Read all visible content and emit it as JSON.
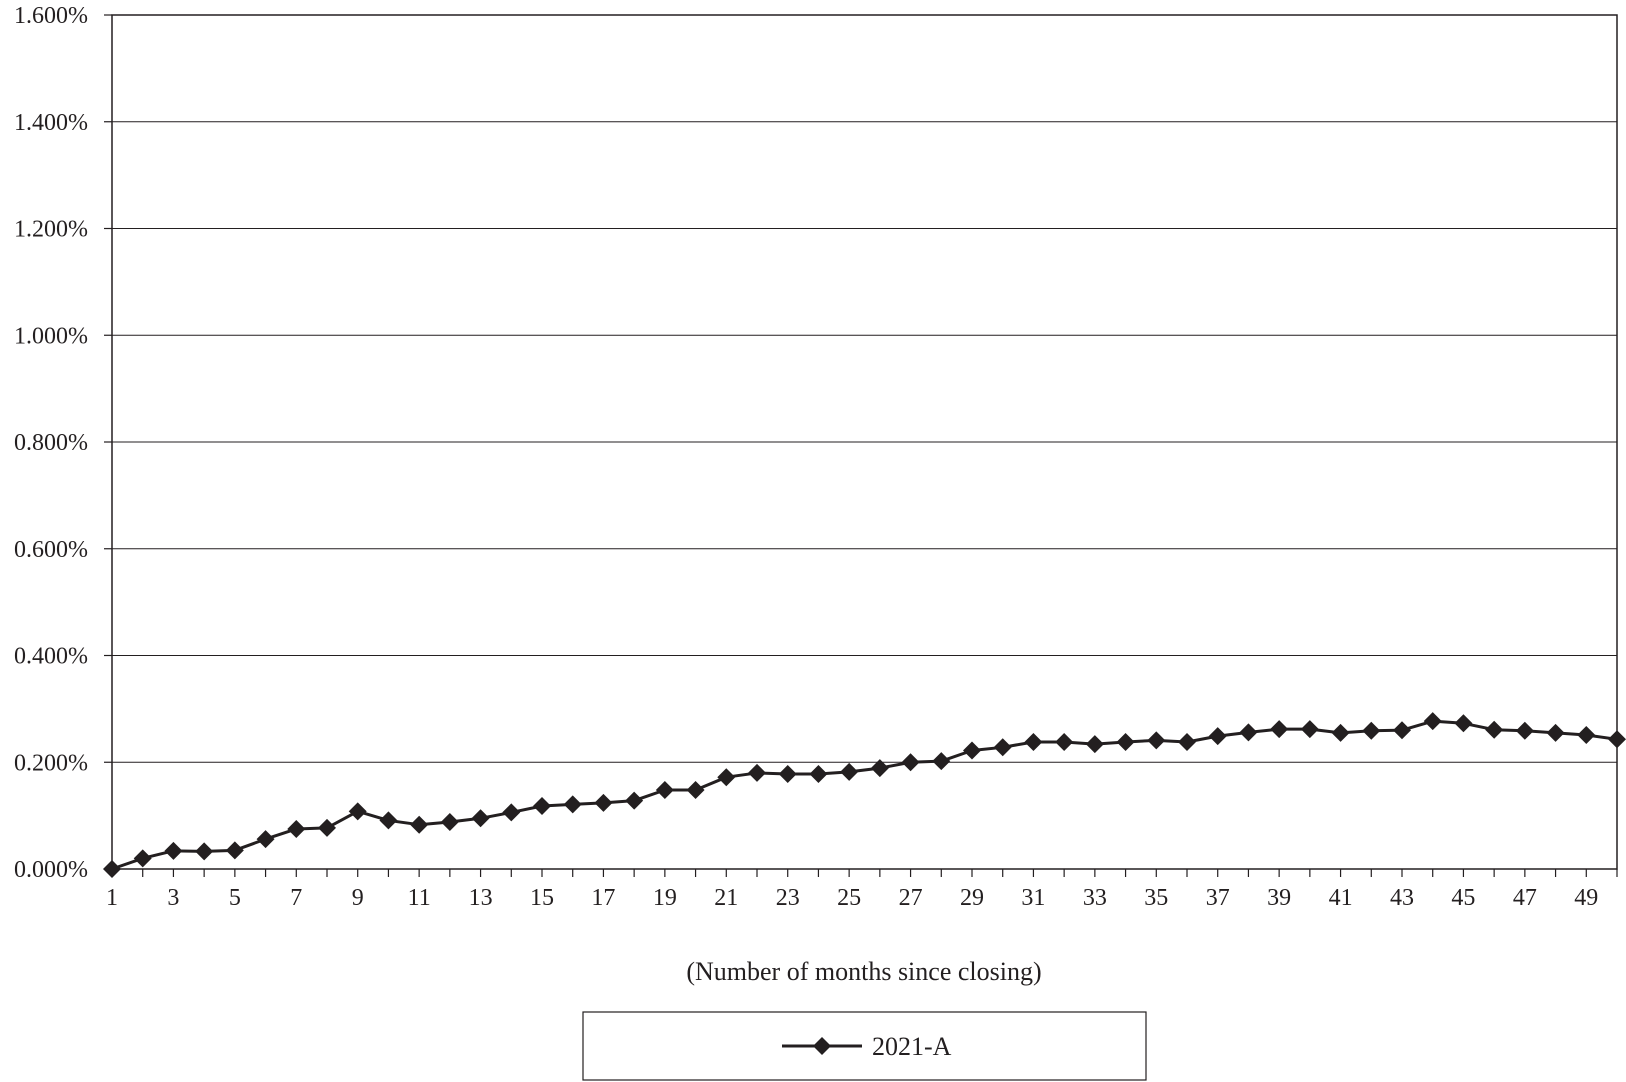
{
  "chart_data": {
    "type": "line",
    "xlabel": "(Number of months since closing)",
    "ylabel": "",
    "ylim": [
      0,
      1.6
    ],
    "y_ticks": [
      "0.000%",
      "0.200%",
      "0.400%",
      "0.600%",
      "0.800%",
      "1.000%",
      "1.200%",
      "1.400%",
      "1.600%"
    ],
    "y_tick_values": [
      0,
      0.2,
      0.4,
      0.6,
      0.8,
      1.0,
      1.2,
      1.4,
      1.6
    ],
    "x_tick_labels": [
      "1",
      "3",
      "5",
      "7",
      "9",
      "11",
      "13",
      "15",
      "17",
      "19",
      "21",
      "23",
      "25",
      "27",
      "29",
      "31",
      "33",
      "35",
      "37",
      "39",
      "41",
      "43",
      "45",
      "47",
      "49"
    ],
    "x": [
      1,
      2,
      3,
      4,
      5,
      6,
      7,
      8,
      9,
      10,
      11,
      12,
      13,
      14,
      15,
      16,
      17,
      18,
      19,
      20,
      21,
      22,
      23,
      24,
      25,
      26,
      27,
      28,
      29,
      30,
      31,
      32,
      33,
      34,
      35,
      36,
      37,
      38,
      39,
      40,
      41,
      42,
      43,
      44,
      45,
      46,
      47,
      48,
      49,
      50
    ],
    "xlim": [
      1,
      50
    ],
    "grid": "horizontal",
    "legend": "bottom-center",
    "series": [
      {
        "name": "2021-A",
        "color": "#231f20",
        "marker": "diamond",
        "values": [
          0.0,
          0.02,
          0.034,
          0.033,
          0.035,
          0.056,
          0.075,
          0.077,
          0.108,
          0.091,
          0.083,
          0.088,
          0.095,
          0.106,
          0.118,
          0.121,
          0.124,
          0.128,
          0.148,
          0.148,
          0.172,
          0.18,
          0.178,
          0.178,
          0.182,
          0.189,
          0.2,
          0.202,
          0.222,
          0.228,
          0.238,
          0.238,
          0.234,
          0.238,
          0.241,
          0.238,
          0.249,
          0.256,
          0.262,
          0.262,
          0.255,
          0.259,
          0.26,
          0.277,
          0.273,
          0.261,
          0.259,
          0.255,
          0.251,
          0.243
        ]
      }
    ]
  }
}
